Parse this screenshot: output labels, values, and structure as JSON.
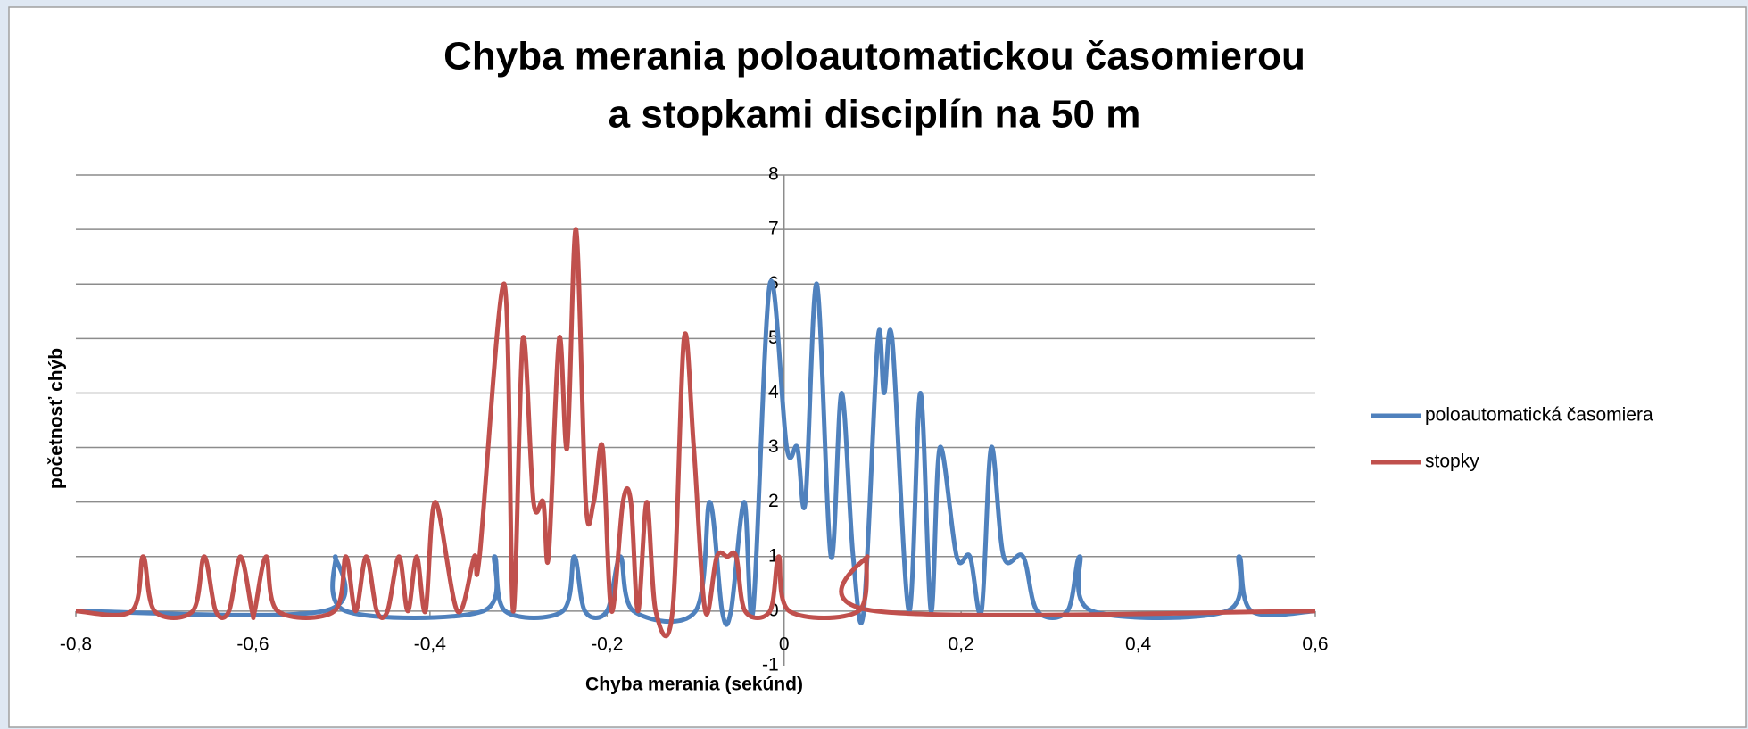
{
  "chart_data": {
    "type": "scatter-smooth",
    "title": [
      "Chyba merania poloautomatickou časomierou",
      "a stopkami disciplín na 50 m"
    ],
    "x_label": "Chyba merania (sekúnd)",
    "y_label": "početnosť chýb",
    "xlim": [
      -0.8,
      0.6
    ],
    "xticks": [
      {
        "value": -0.8,
        "label": "-0,8"
      },
      {
        "value": -0.6,
        "label": "-0,6"
      },
      {
        "value": -0.4,
        "label": "-0,4"
      },
      {
        "value": -0.2,
        "label": "-0,2"
      },
      0,
      {
        "value": 0.2,
        "label": "0,2"
      },
      {
        "value": 0.4,
        "label": "0,4"
      },
      {
        "value": 0.6,
        "label": "0,6"
      }
    ],
    "ylim": [
      -1,
      8
    ],
    "yticks": [
      -1,
      0,
      1,
      2,
      3,
      4,
      5,
      6,
      7,
      8
    ],
    "grid": true,
    "legend": "right",
    "series": [
      {
        "name": "poloautomatická časomiera",
        "color": "#4f81bd",
        "x": [
          -0.8,
          -0.52,
          -0.507,
          -0.495,
          -0.34,
          -0.327,
          -0.315,
          -0.25,
          -0.237,
          -0.225,
          -0.2,
          -0.185,
          -0.17,
          -0.1,
          -0.084,
          -0.07,
          -0.06,
          -0.045,
          -0.035,
          -0.016,
          0.003,
          0.015,
          0.024,
          0.037,
          0.053,
          0.065,
          0.078,
          0.09,
          0.106,
          0.113,
          0.122,
          0.141,
          0.154,
          0.166,
          0.176,
          0.195,
          0.21,
          0.223,
          0.234,
          0.248,
          0.27,
          0.286,
          0.32,
          0.334,
          0.348,
          0.5,
          0.514,
          0.528,
          0.6
        ],
        "values": [
          0,
          0,
          1,
          0,
          0,
          1,
          0,
          0,
          1,
          0,
          0,
          1,
          0,
          0,
          2,
          0,
          0,
          2,
          0,
          6,
          3,
          3,
          2,
          6,
          1,
          4,
          1,
          0,
          5,
          4,
          5,
          0,
          4,
          0,
          3,
          1,
          1,
          0,
          3,
          1,
          1,
          0,
          0,
          1,
          0,
          0,
          1,
          0,
          0
        ]
      },
      {
        "name": "stopky",
        "color": "#c0504d",
        "x": [
          -0.8,
          -0.737,
          -0.724,
          -0.711,
          -0.668,
          -0.655,
          -0.642,
          -0.627,
          -0.614,
          -0.601,
          -0.598,
          -0.585,
          -0.572,
          -0.508,
          -0.495,
          -0.484,
          -0.472,
          -0.46,
          -0.448,
          -0.435,
          -0.425,
          -0.415,
          -0.405,
          -0.394,
          -0.369,
          -0.35,
          -0.344,
          -0.316,
          -0.306,
          -0.295,
          -0.283,
          -0.272,
          -0.266,
          -0.254,
          -0.245,
          -0.235,
          -0.224,
          -0.215,
          -0.205,
          -0.195,
          -0.182,
          -0.173,
          -0.165,
          -0.155,
          -0.145,
          -0.126,
          -0.113,
          -0.102,
          -0.089,
          -0.076,
          -0.064,
          -0.054,
          -0.044,
          -0.016,
          -0.006,
          0.006,
          0.084,
          0.094,
          0.104,
          0.6
        ],
        "values": [
          0,
          0,
          1,
          0,
          0,
          1,
          0,
          0,
          1,
          0,
          0,
          1,
          0,
          0,
          1,
          0,
          1,
          0,
          0,
          1,
          0,
          1,
          0,
          2,
          0,
          1,
          1,
          6,
          0,
          5,
          2,
          2,
          1,
          5,
          3,
          7,
          2,
          2,
          3,
          0,
          2,
          2,
          0,
          2,
          0,
          0,
          5,
          3,
          0,
          1,
          1,
          1,
          0,
          0,
          1,
          0,
          0,
          1,
          0,
          0
        ]
      }
    ]
  }
}
